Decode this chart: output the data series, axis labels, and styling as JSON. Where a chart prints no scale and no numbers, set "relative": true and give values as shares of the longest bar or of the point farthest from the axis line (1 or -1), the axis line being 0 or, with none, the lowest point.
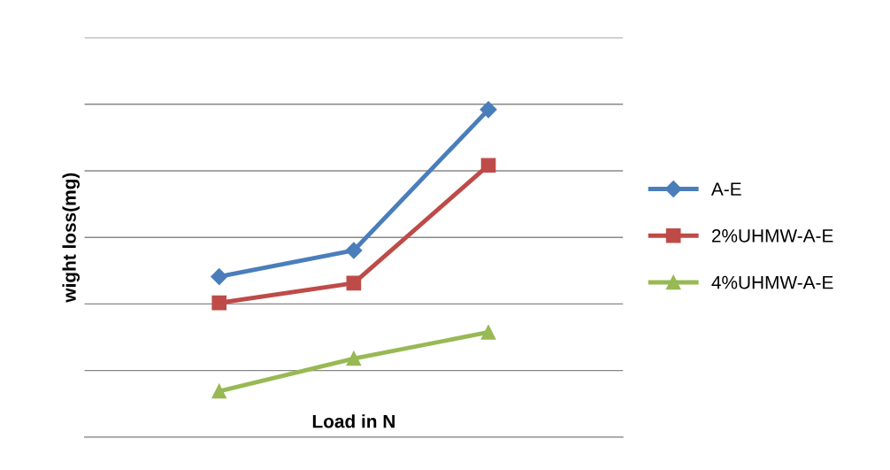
{
  "chart_data": {
    "type": "line",
    "relative": true,
    "xlabel": "Load in N",
    "ylabel": "wight loss(mg)",
    "categories": [
      null,
      null,
      null
    ],
    "series": [
      {
        "name": "A-E",
        "color": "#4a7ebb",
        "marker": "diamond",
        "values": [
          0.49,
          0.57,
          1.0
        ]
      },
      {
        "name": "2%UHMW-A-E",
        "color": "#be4b48",
        "marker": "square",
        "values": [
          0.41,
          0.47,
          0.83
        ]
      },
      {
        "name": "4%UHMW-A-E",
        "color": "#98b954",
        "marker": "triangle",
        "values": [
          0.14,
          0.24,
          0.32
        ]
      }
    ],
    "grid": "y",
    "legend": "right",
    "line_style": "solid"
  }
}
